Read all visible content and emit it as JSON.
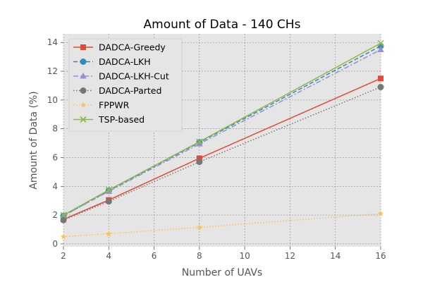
{
  "chart_data": {
    "type": "line",
    "title": "Amount of Data - 140 CHs",
    "xlabel": "Number of UAVs",
    "ylabel": "Amount of Data (%)",
    "x": [
      2,
      4,
      8,
      16
    ],
    "xlim": [
      2,
      16
    ],
    "ylim": [
      -0.2,
      14.6
    ],
    "xticks": [
      "2",
      "4",
      "6",
      "8",
      "10",
      "12",
      "14",
      "16"
    ],
    "yticks": [
      "0",
      "2",
      "4",
      "6",
      "8",
      "10",
      "12",
      "14"
    ],
    "grid": true,
    "legend_position": "upper-left",
    "series": [
      {
        "name": "DADCA-Greedy",
        "values": [
          1.7,
          3.05,
          5.95,
          11.5
        ],
        "color": "#e24a33",
        "dash": "solid",
        "marker": "square"
      },
      {
        "name": "DADCA-LKH",
        "values": [
          1.95,
          3.7,
          7.05,
          13.75
        ],
        "color": "#348abd",
        "dash": "dashed",
        "marker": "circle"
      },
      {
        "name": "DADCA-LKH-Cut",
        "values": [
          1.95,
          3.65,
          6.95,
          13.5
        ],
        "color": "#988ed5",
        "dash": "dashdot",
        "marker": "triangle"
      },
      {
        "name": "DADCA-Parted",
        "values": [
          1.65,
          2.95,
          5.7,
          10.9
        ],
        "color": "#777777",
        "dash": "dotted",
        "marker": "circle"
      },
      {
        "name": "FPPWR",
        "values": [
          0.5,
          0.7,
          1.15,
          2.1
        ],
        "color": "#fbc15e",
        "dash": "dotted",
        "marker": "star"
      },
      {
        "name": "TSP-based",
        "values": [
          2.0,
          3.75,
          7.1,
          13.95
        ],
        "color": "#8eba42",
        "dash": "solid",
        "marker": "x"
      }
    ]
  }
}
